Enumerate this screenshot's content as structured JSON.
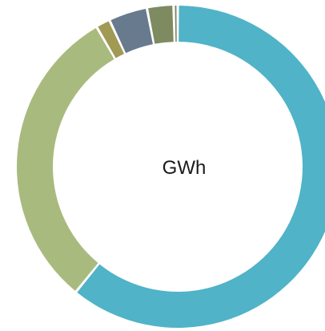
{
  "chart_data": {
    "type": "pie",
    "variant": "donut",
    "center_label": "GWh",
    "slices": [
      {
        "value": 59.6,
        "color": "#50B3C8"
      },
      {
        "value": 30.1,
        "color": "#A9BA7E"
      },
      {
        "value": 1.4,
        "color": "#A09A55"
      },
      {
        "value": 3.8,
        "color": "#677A8E"
      },
      {
        "value": 2.6,
        "color": "#7E8A60"
      },
      {
        "value": 0.4,
        "color": "#7E8A60"
      }
    ]
  }
}
